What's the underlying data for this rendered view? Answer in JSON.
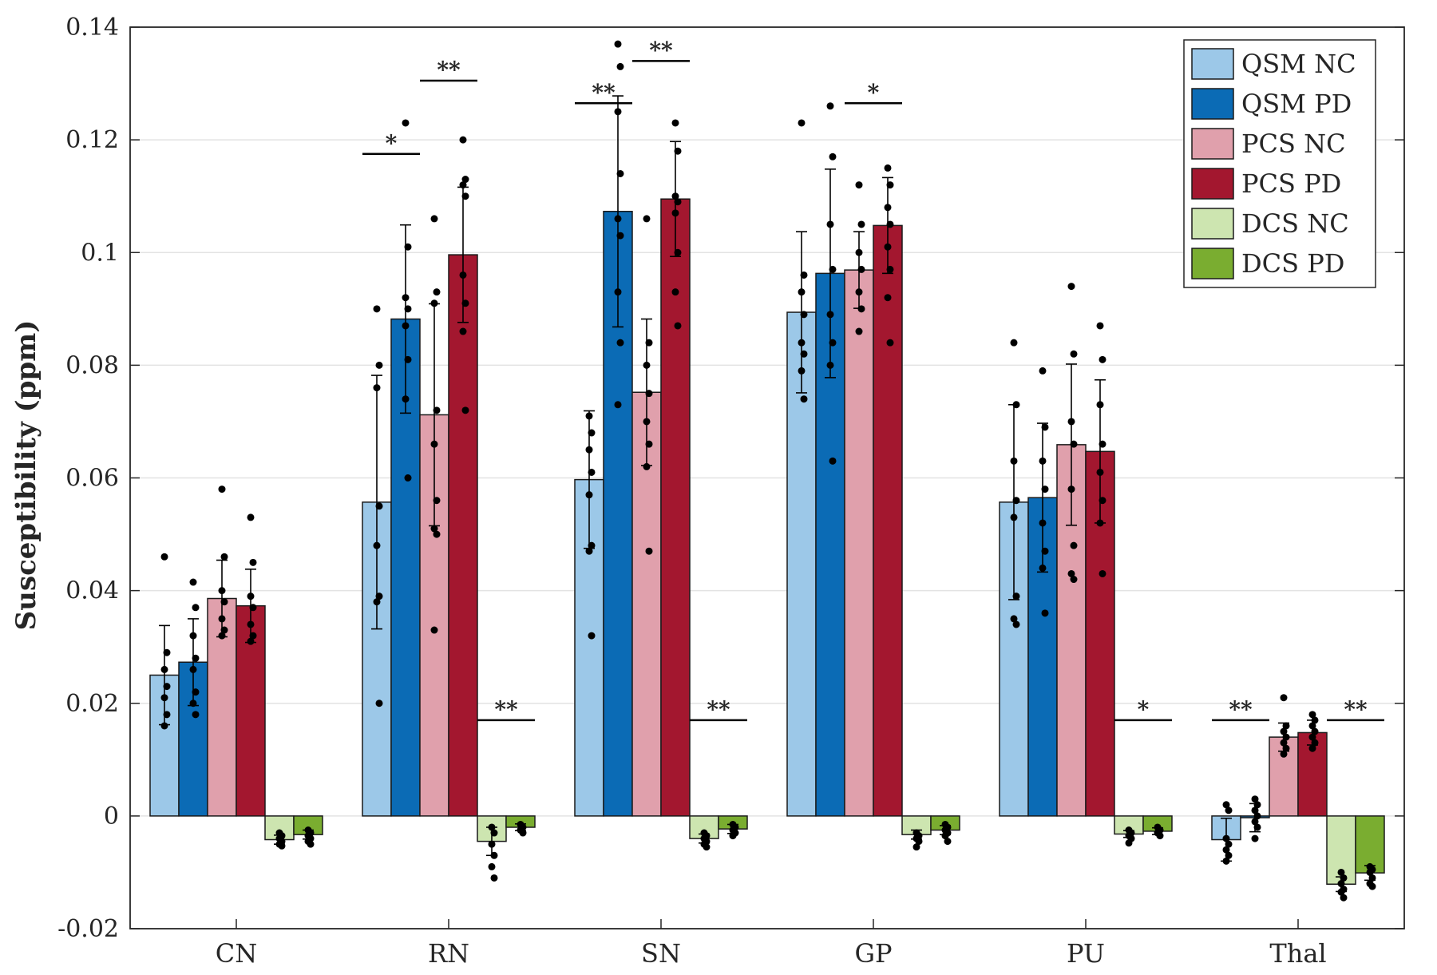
{
  "chart_data": {
    "type": "bar",
    "title": "",
    "xlabel": "",
    "ylabel": "Susceptibility (ppm)",
    "ylim": [
      -0.02,
      0.14
    ],
    "yticks": [
      -0.02,
      0,
      0.02,
      0.04,
      0.06,
      0.08,
      0.1,
      0.12,
      0.14
    ],
    "ytick_labels": [
      "-0.02",
      "0",
      "0.02",
      "0.04",
      "0.06",
      "0.08",
      "0.1",
      "0.12",
      "0.14"
    ],
    "grid": true,
    "legend_position": "top-right",
    "categories": [
      "CN",
      "RN",
      "SN",
      "GP",
      "PU",
      "Thal"
    ],
    "series": [
      {
        "name": "QSM NC",
        "color": "#9cc8e8",
        "values": [
          0.025,
          0.0557,
          0.0597,
          0.0894,
          0.0557,
          -0.0042
        ],
        "errors": [
          0.0088,
          0.0225,
          0.0122,
          0.0143,
          0.0173,
          0.0038
        ],
        "points": [
          [
            0.046,
            0.029,
            0.026,
            0.023,
            0.021,
            0.018,
            0.016
          ],
          [
            0.09,
            0.08,
            0.076,
            0.055,
            0.048,
            0.039,
            0.038,
            0.02
          ],
          [
            0.071,
            0.068,
            0.065,
            0.061,
            0.057,
            0.048,
            0.047,
            0.032
          ],
          [
            0.123,
            0.096,
            0.093,
            0.089,
            0.084,
            0.082,
            0.079,
            0.074
          ],
          [
            0.084,
            0.073,
            0.063,
            0.056,
            0.053,
            0.039,
            0.035,
            0.034
          ],
          [
            0.002,
            0.001,
            -0.004,
            -0.005,
            -0.006,
            -0.007,
            -0.008
          ]
        ]
      },
      {
        "name": "QSM PD",
        "color": "#0b6bb5",
        "values": [
          0.0273,
          0.0882,
          0.1073,
          0.0963,
          0.0565,
          -0.0003
        ],
        "errors": [
          0.0077,
          0.0167,
          0.0205,
          0.0185,
          0.0132,
          0.0025
        ],
        "points": [
          [
            0.0415,
            0.037,
            0.032,
            0.028,
            0.026,
            0.022,
            0.02,
            0.018
          ],
          [
            0.123,
            0.101,
            0.092,
            0.09,
            0.087,
            0.081,
            0.074,
            0.06
          ],
          [
            0.137,
            0.133,
            0.125,
            0.114,
            0.106,
            0.103,
            0.093,
            0.084,
            0.073
          ],
          [
            0.126,
            0.117,
            0.105,
            0.097,
            0.089,
            0.084,
            0.08,
            0.063
          ],
          [
            0.079,
            0.069,
            0.063,
            0.058,
            0.052,
            0.047,
            0.044,
            0.036
          ],
          [
            0.003,
            0.002,
            0.001,
            0.0,
            -0.001,
            -0.002,
            -0.004
          ]
        ]
      },
      {
        "name": "PCS NC",
        "color": "#e0a0ac",
        "values": [
          0.0386,
          0.0712,
          0.0752,
          0.0969,
          0.0659,
          0.014
        ],
        "errors": [
          0.0068,
          0.0197,
          0.013,
          0.0068,
          0.0143,
          0.0025
        ],
        "points": [
          [
            0.058,
            0.046,
            0.04,
            0.038,
            0.035,
            0.033,
            0.032
          ],
          [
            0.106,
            0.093,
            0.091,
            0.072,
            0.066,
            0.056,
            0.051,
            0.05,
            0.033
          ],
          [
            0.106,
            0.084,
            0.08,
            0.075,
            0.07,
            0.066,
            0.062,
            0.047
          ],
          [
            0.112,
            0.105,
            0.1,
            0.097,
            0.093,
            0.09,
            0.086
          ],
          [
            0.094,
            0.082,
            0.07,
            0.066,
            0.058,
            0.048,
            0.043,
            0.042
          ],
          [
            0.021,
            0.016,
            0.015,
            0.014,
            0.013,
            0.012,
            0.011
          ]
        ]
      },
      {
        "name": "PCS PD",
        "color": "#a3172f",
        "values": [
          0.0373,
          0.0996,
          0.1095,
          0.1048,
          0.0647,
          0.0148
        ],
        "errors": [
          0.0065,
          0.012,
          0.0102,
          0.0085,
          0.0127,
          0.0022
        ],
        "points": [
          [
            0.053,
            0.045,
            0.039,
            0.037,
            0.034,
            0.032,
            0.031
          ],
          [
            0.12,
            0.113,
            0.112,
            0.11,
            0.096,
            0.091,
            0.086,
            0.072
          ],
          [
            0.123,
            0.118,
            0.11,
            0.109,
            0.107,
            0.1,
            0.093,
            0.087
          ],
          [
            0.115,
            0.112,
            0.108,
            0.105,
            0.101,
            0.097,
            0.092,
            0.084
          ],
          [
            0.087,
            0.081,
            0.073,
            0.066,
            0.061,
            0.056,
            0.052,
            0.043
          ],
          [
            0.018,
            0.017,
            0.016,
            0.015,
            0.014,
            0.013,
            0.012
          ]
        ]
      },
      {
        "name": "DCS NC",
        "color": "#cde5b0",
        "values": [
          -0.0042,
          -0.0045,
          -0.004,
          -0.0033,
          -0.0032,
          -0.0121
        ],
        "errors": [
          0.0008,
          0.0025,
          0.0008,
          0.0008,
          0.0006,
          0.0013
        ],
        "points": [
          [
            -0.003,
            -0.0035,
            -0.004,
            -0.0045,
            -0.005,
            -0.0053
          ],
          [
            -0.002,
            -0.003,
            -0.005,
            -0.007,
            -0.009,
            -0.011
          ],
          [
            -0.003,
            -0.0035,
            -0.004,
            -0.0045,
            -0.005,
            -0.0055
          ],
          [
            -0.003,
            -0.0035,
            -0.004,
            -0.0045,
            -0.0055
          ],
          [
            -0.0025,
            -0.003,
            -0.0035,
            -0.004,
            -0.0048
          ],
          [
            -0.01,
            -0.011,
            -0.012,
            -0.013,
            -0.0135,
            -0.0145
          ]
        ]
      },
      {
        "name": "DCS PD",
        "color": "#7aad30",
        "values": [
          -0.0033,
          -0.002,
          -0.0023,
          -0.0025,
          -0.0027,
          -0.0101
        ],
        "errors": [
          0.0008,
          0.0006,
          0.0008,
          0.0008,
          0.0006,
          0.0013
        ],
        "points": [
          [
            -0.0025,
            -0.003,
            -0.0035,
            -0.004,
            -0.0045,
            -0.005
          ],
          [
            -0.0015,
            -0.002,
            -0.0025,
            -0.003
          ],
          [
            -0.0015,
            -0.002,
            -0.0025,
            -0.003,
            -0.0035
          ],
          [
            -0.0015,
            -0.002,
            -0.0025,
            -0.003,
            -0.0035,
            -0.0045
          ],
          [
            -0.002,
            -0.0025,
            -0.003,
            -0.0035
          ],
          [
            -0.009,
            -0.0095,
            -0.01,
            -0.011,
            -0.012,
            -0.0125
          ]
        ]
      }
    ],
    "annotations": [
      {
        "text": "*",
        "category": "RN",
        "from_series": 0,
        "to_series": 1,
        "y": 0.1175
      },
      {
        "text": "**",
        "category": "RN",
        "from_series": 2,
        "to_series": 3,
        "y": 0.1305
      },
      {
        "text": "**",
        "category": "RN",
        "from_series": 4,
        "to_series": 5,
        "y": 0.017
      },
      {
        "text": "**",
        "category": "SN",
        "from_series": 0,
        "to_series": 1,
        "y": 0.1265
      },
      {
        "text": "**",
        "category": "SN",
        "from_series": 2,
        "to_series": 3,
        "y": 0.134
      },
      {
        "text": "**",
        "category": "SN",
        "from_series": 4,
        "to_series": 5,
        "y": 0.017
      },
      {
        "text": "*",
        "category": "GP",
        "from_series": 2,
        "to_series": 3,
        "y": 0.1265
      },
      {
        "text": "*",
        "category": "PU",
        "from_series": 4,
        "to_series": 5,
        "y": 0.017
      },
      {
        "text": "**",
        "category": "Thal",
        "from_series": 0,
        "to_series": 1,
        "y": 0.017
      },
      {
        "text": "**",
        "category": "Thal",
        "from_series": 4,
        "to_series": 5,
        "y": 0.017
      }
    ]
  }
}
